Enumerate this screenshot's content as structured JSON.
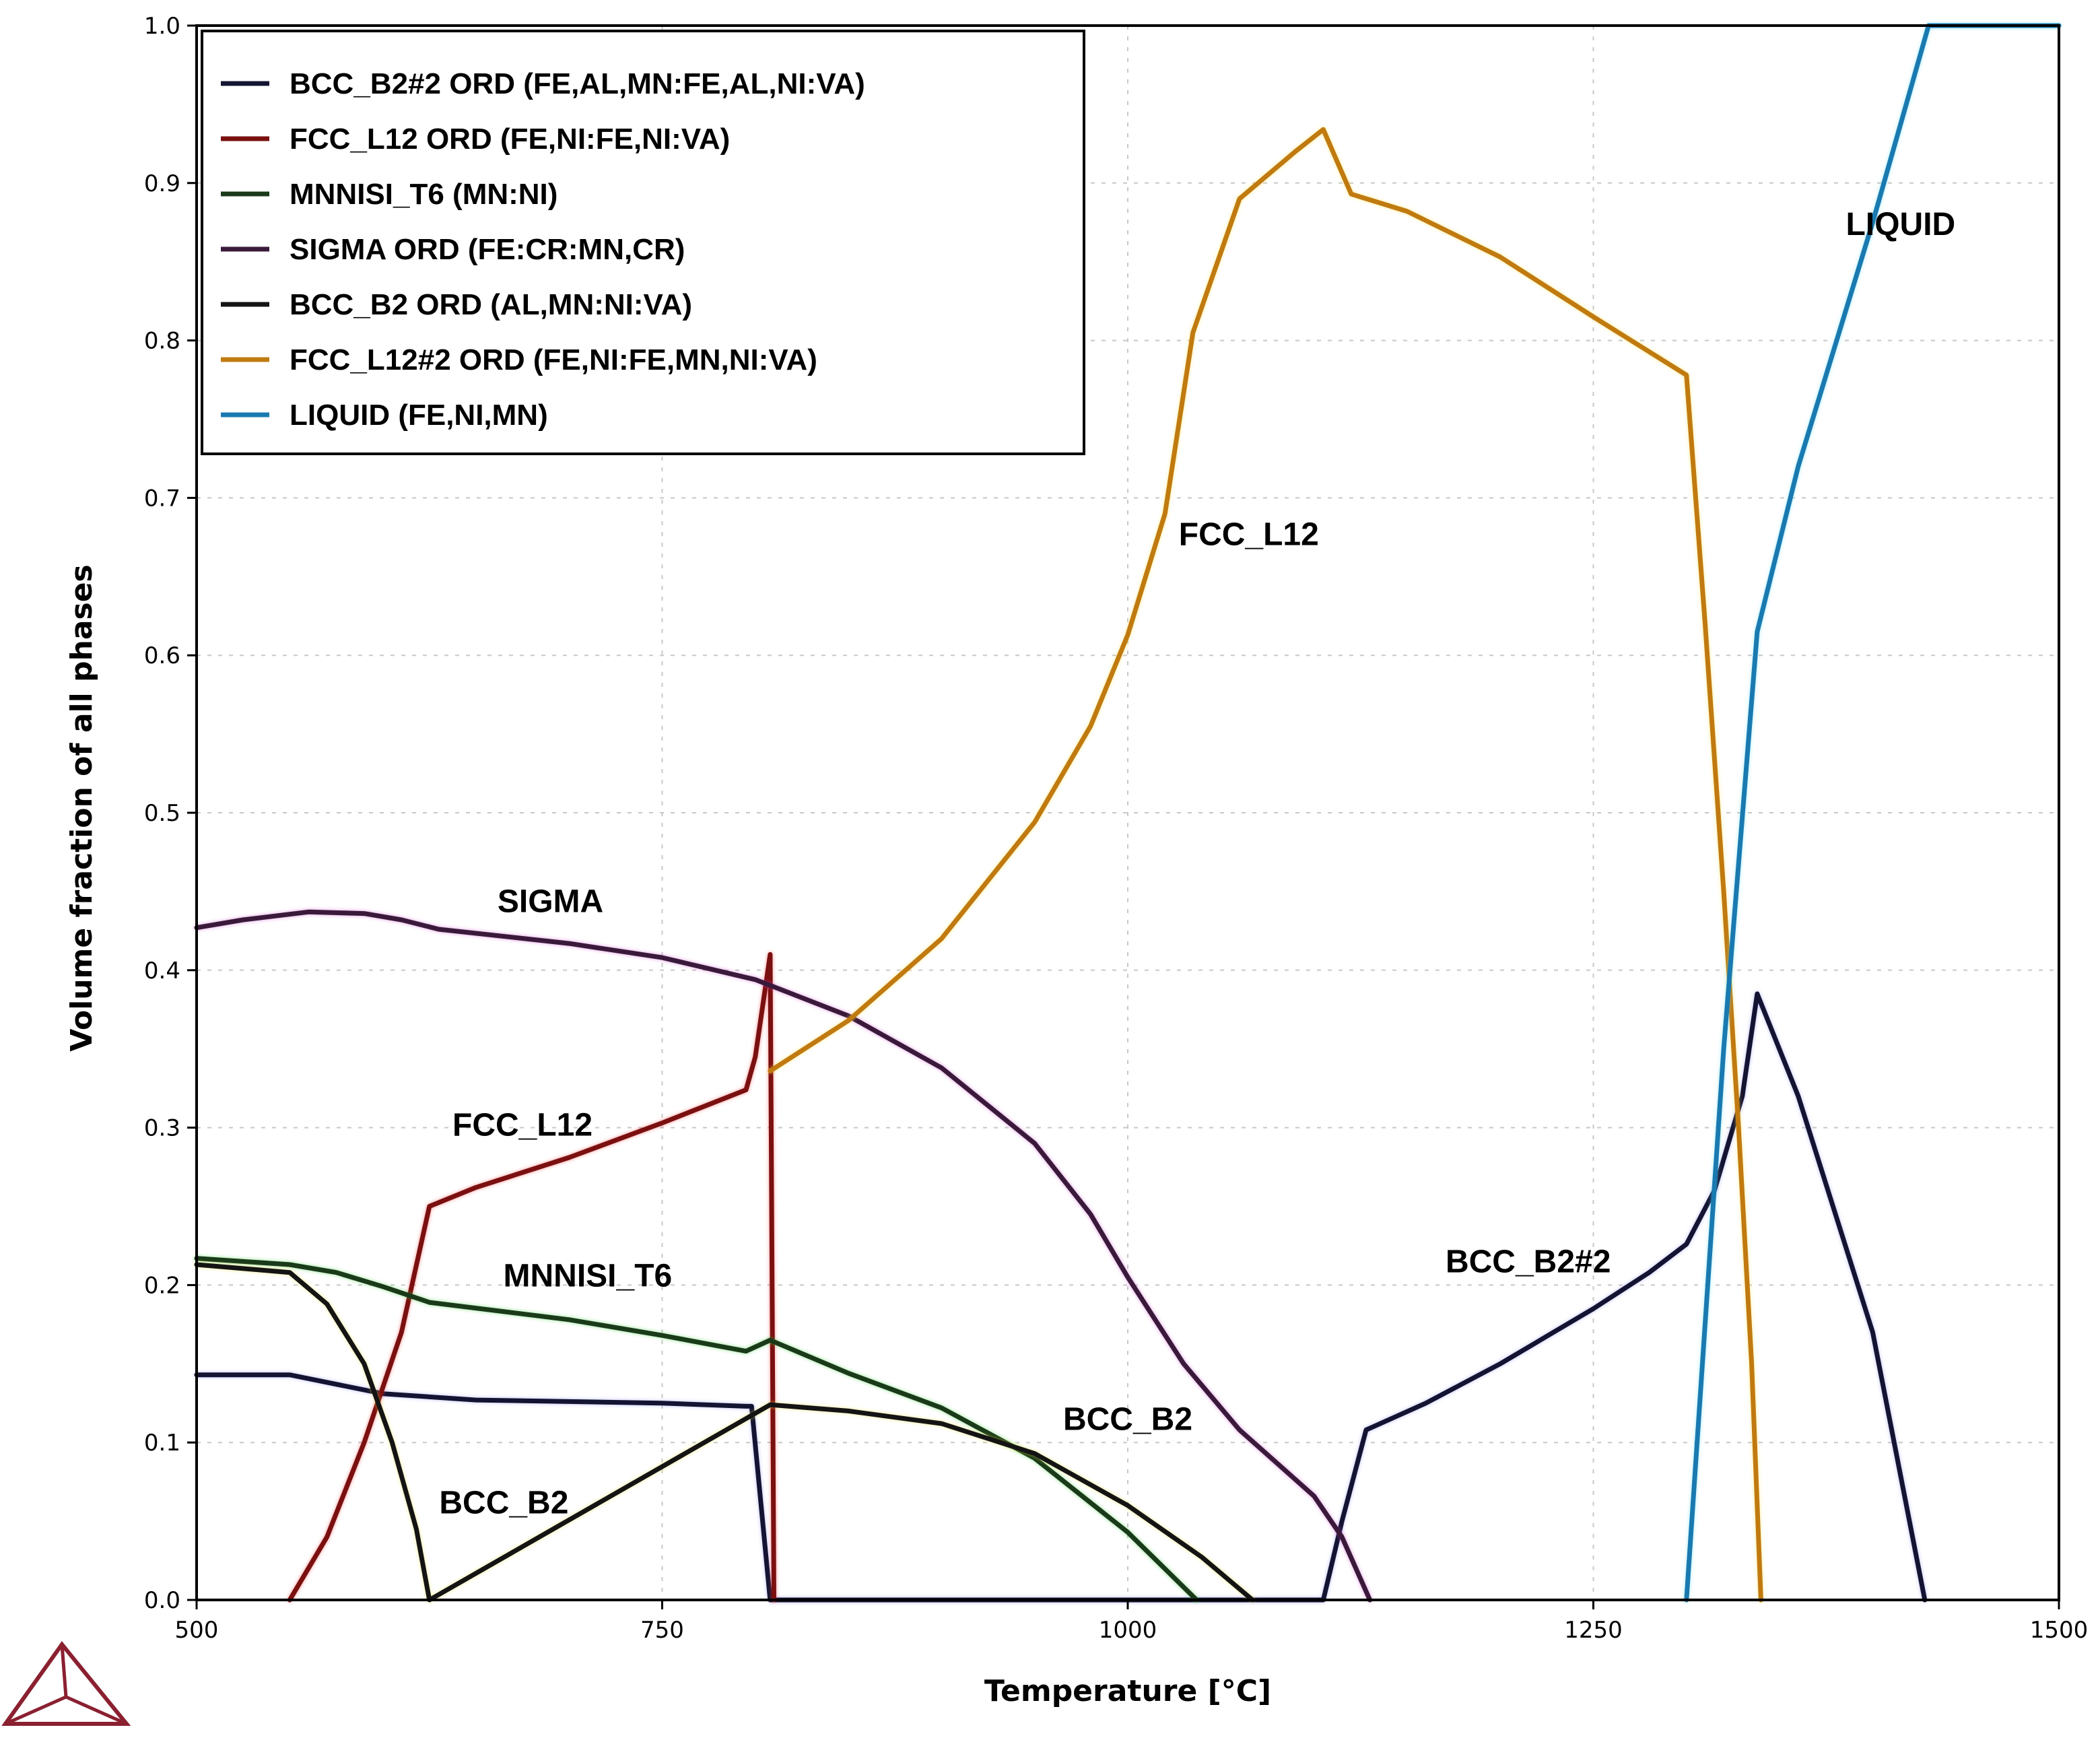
{
  "chart_data": {
    "type": "line",
    "title": "",
    "xlabel": "Temperature [°C]",
    "ylabel": "Volume fraction of all phases",
    "xlim": [
      500,
      1500
    ],
    "ylim": [
      0,
      1.0
    ],
    "grid": true,
    "legend_position": "top-left",
    "x_ticks": [
      {
        "value": 500,
        "label": "500"
      },
      {
        "value": 750,
        "label": "750"
      },
      {
        "value": 1000,
        "label": "1000"
      },
      {
        "value": 1250,
        "label": "1250"
      },
      {
        "value": 1500,
        "label": "1500"
      }
    ],
    "y_ticks": [
      {
        "value": 0.0,
        "label": "0.0"
      },
      {
        "value": 0.1,
        "label": "0.1"
      },
      {
        "value": 0.2,
        "label": "0.2"
      },
      {
        "value": 0.3,
        "label": "0.3"
      },
      {
        "value": 0.4,
        "label": "0.4"
      },
      {
        "value": 0.5,
        "label": "0.5"
      },
      {
        "value": 0.6,
        "label": "0.6"
      },
      {
        "value": 0.7,
        "label": "0.7"
      },
      {
        "value": 0.8,
        "label": "0.8"
      },
      {
        "value": 0.9,
        "label": "0.9"
      },
      {
        "value": 1.0,
        "label": "1.0"
      }
    ],
    "series": [
      {
        "name": "BCC_B2#2 ORD (FE,AL,MN:FE,AL,NI:VA)",
        "color": "#141432",
        "glow": "#8c8cff",
        "points": [
          [
            500,
            0.143
          ],
          [
            550,
            0.143
          ],
          [
            600,
            0.131
          ],
          [
            650,
            0.127
          ],
          [
            700,
            0.126
          ],
          [
            750,
            0.125
          ],
          [
            795,
            0.123
          ],
          [
            798,
            0.123
          ],
          [
            808,
            0.0
          ],
          [
            1105,
            0.0
          ],
          [
            1115,
            0.05
          ],
          [
            1128,
            0.108
          ],
          [
            1160,
            0.125
          ],
          [
            1200,
            0.15
          ],
          [
            1250,
            0.185
          ],
          [
            1280,
            0.208
          ],
          [
            1300,
            0.226
          ],
          [
            1315,
            0.26
          ],
          [
            1330,
            0.32
          ],
          [
            1338,
            0.385
          ],
          [
            1360,
            0.32
          ],
          [
            1400,
            0.17
          ],
          [
            1428,
            0.0
          ]
        ]
      },
      {
        "name": "FCC_L12 ORD (FE,NI:FE,NI:VA)",
        "color": "#7a1010",
        "glow": "#ff4040",
        "points": [
          [
            550,
            0.0
          ],
          [
            570,
            0.04
          ],
          [
            590,
            0.1
          ],
          [
            610,
            0.17
          ],
          [
            625,
            0.25
          ],
          [
            650,
            0.262
          ],
          [
            700,
            0.281
          ],
          [
            750,
            0.303
          ],
          [
            795,
            0.324
          ],
          [
            800,
            0.345
          ],
          [
            808,
            0.41
          ],
          [
            810,
            0.0
          ]
        ]
      },
      {
        "name": "MNNISI_T6  (MN:NI)",
        "color": "#1a3a1a",
        "glow": "#33cc33",
        "points": [
          [
            500,
            0.217
          ],
          [
            550,
            0.213
          ],
          [
            575,
            0.208
          ],
          [
            600,
            0.199
          ],
          [
            625,
            0.189
          ],
          [
            700,
            0.178
          ],
          [
            750,
            0.168
          ],
          [
            795,
            0.158
          ],
          [
            808,
            0.165
          ],
          [
            850,
            0.144
          ],
          [
            900,
            0.122
          ],
          [
            950,
            0.09
          ],
          [
            1000,
            0.043
          ],
          [
            1037,
            0.0
          ]
        ]
      },
      {
        "name": "SIGMA ORD (FE:CR:MN,CR)",
        "color": "#3a1a3a",
        "glow": "#cc44cc",
        "points": [
          [
            500,
            0.427
          ],
          [
            525,
            0.432
          ],
          [
            560,
            0.437
          ],
          [
            590,
            0.436
          ],
          [
            610,
            0.432
          ],
          [
            630,
            0.426
          ],
          [
            700,
            0.417
          ],
          [
            750,
            0.408
          ],
          [
            800,
            0.394
          ],
          [
            850,
            0.371
          ],
          [
            900,
            0.338
          ],
          [
            950,
            0.29
          ],
          [
            980,
            0.245
          ],
          [
            1000,
            0.205
          ],
          [
            1030,
            0.15
          ],
          [
            1060,
            0.108
          ],
          [
            1100,
            0.066
          ],
          [
            1115,
            0.04
          ],
          [
            1130,
            0.0
          ]
        ]
      },
      {
        "name": "BCC_B2 ORD (AL,MN:NI:VA)",
        "color": "#141414",
        "glow": "#e8e040",
        "points": [
          [
            500,
            0.213
          ],
          [
            550,
            0.208
          ],
          [
            570,
            0.188
          ],
          [
            590,
            0.15
          ],
          [
            605,
            0.1
          ],
          [
            618,
            0.045
          ],
          [
            625,
            0.0
          ],
          [
            808,
            0.124
          ],
          [
            850,
            0.12
          ],
          [
            900,
            0.112
          ],
          [
            950,
            0.093
          ],
          [
            1000,
            0.06
          ],
          [
            1040,
            0.027
          ],
          [
            1067,
            0.0
          ]
        ]
      },
      {
        "name": "FCC_L12#2 ORD (FE,NI:FE,MN,NI:VA)",
        "color": "#c07a10",
        "glow": "#ffe040",
        "points": [
          [
            808,
            0.336
          ],
          [
            850,
            0.368
          ],
          [
            900,
            0.42
          ],
          [
            950,
            0.494
          ],
          [
            980,
            0.555
          ],
          [
            1000,
            0.613
          ],
          [
            1020,
            0.69
          ],
          [
            1035,
            0.805
          ],
          [
            1060,
            0.89
          ],
          [
            1090,
            0.92
          ],
          [
            1105,
            0.934
          ],
          [
            1120,
            0.893
          ],
          [
            1150,
            0.882
          ],
          [
            1200,
            0.853
          ],
          [
            1250,
            0.815
          ],
          [
            1300,
            0.778
          ],
          [
            1310,
            0.62
          ],
          [
            1320,
            0.45
          ],
          [
            1328,
            0.3
          ],
          [
            1335,
            0.15
          ],
          [
            1340,
            0.0
          ]
        ]
      },
      {
        "name": "LIQUID  (FE,NI,MN)",
        "color": "#1a7ab0",
        "glow": "#60e0ff",
        "points": [
          [
            1300,
            0.0
          ],
          [
            1320,
            0.35
          ],
          [
            1338,
            0.615
          ],
          [
            1360,
            0.72
          ],
          [
            1400,
            0.875
          ],
          [
            1430,
            1.0
          ],
          [
            1500,
            1.0
          ]
        ]
      }
    ],
    "annotations": [
      {
        "text": "SIGMA",
        "x": 690,
        "y": 0.437
      },
      {
        "text": "FCC_L12",
        "x": 1065,
        "y": 0.67
      },
      {
        "text": "FCC_L12",
        "x": 675,
        "y": 0.295
      },
      {
        "text": "MNNISI_T6",
        "x": 710,
        "y": 0.199
      },
      {
        "text": "BCC_B2",
        "x": 1000,
        "y": 0.108
      },
      {
        "text": "BCC_B2",
        "x": 665,
        "y": 0.055
      },
      {
        "text": "BCC_B2#2",
        "x": 1215,
        "y": 0.208
      },
      {
        "text": "LIQUID",
        "x": 1415,
        "y": 0.867
      }
    ]
  }
}
